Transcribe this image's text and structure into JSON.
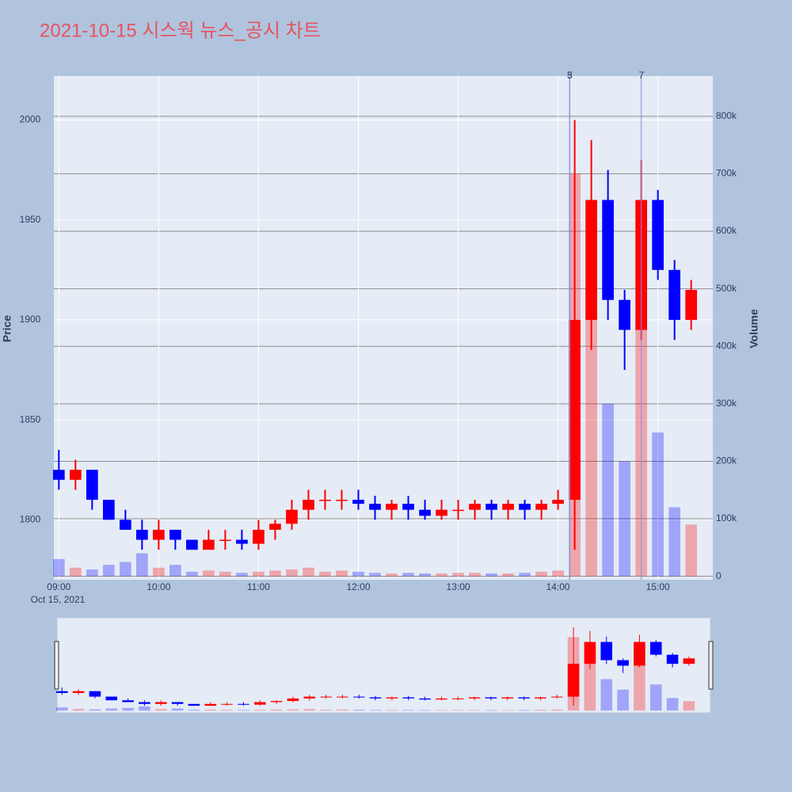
{
  "chart_data": {
    "type": "candlestick",
    "title": "2021-10-15 시스웍 뉴스_공시 차트",
    "ylabel": "Price",
    "y2label": "Volume",
    "x": [
      "09:00",
      "09:10",
      "09:20",
      "09:30",
      "09:40",
      "09:50",
      "10:00",
      "10:10",
      "10:20",
      "10:30",
      "10:40",
      "10:50",
      "11:00",
      "11:10",
      "11:20",
      "11:30",
      "11:40",
      "11:50",
      "12:00",
      "12:10",
      "12:20",
      "12:30",
      "12:40",
      "12:50",
      "13:00",
      "13:10",
      "13:20",
      "13:30",
      "13:40",
      "13:50",
      "14:00",
      "14:10",
      "14:20",
      "14:30",
      "14:40",
      "14:50",
      "15:00",
      "15:10",
      "15:20"
    ],
    "open": [
      1825,
      1820,
      1825,
      1810,
      1800,
      1795,
      1790,
      1795,
      1790,
      1785,
      1790,
      1790,
      1788,
      1795,
      1798,
      1805,
      1810,
      1810,
      1810,
      1808,
      1805,
      1808,
      1805,
      1802,
      1805,
      1805,
      1808,
      1805,
      1808,
      1805,
      1808,
      1810,
      1900,
      1960,
      1910,
      1895,
      1960,
      1925,
      1900
    ],
    "high": [
      1835,
      1830,
      1825,
      1810,
      1805,
      1800,
      1800,
      1795,
      1790,
      1795,
      1795,
      1795,
      1800,
      1800,
      1810,
      1815,
      1815,
      1815,
      1815,
      1812,
      1810,
      1812,
      1810,
      1810,
      1810,
      1810,
      1810,
      1810,
      1810,
      1810,
      1815,
      2000,
      1990,
      1975,
      1915,
      1980,
      1965,
      1930,
      1920
    ],
    "low": [
      1815,
      1815,
      1805,
      1800,
      1795,
      1785,
      1785,
      1785,
      1785,
      1785,
      1785,
      1785,
      1785,
      1790,
      1795,
      1800,
      1805,
      1805,
      1805,
      1800,
      1800,
      1800,
      1800,
      1800,
      1800,
      1800,
      1800,
      1800,
      1800,
      1800,
      1805,
      1785,
      1885,
      1900,
      1875,
      1890,
      1920,
      1890,
      1895
    ],
    "close": [
      1820,
      1825,
      1810,
      1800,
      1795,
      1790,
      1795,
      1790,
      1785,
      1790,
      1790,
      1788,
      1795,
      1798,
      1805,
      1810,
      1810,
      1810,
      1808,
      1805,
      1808,
      1805,
      1802,
      1805,
      1805,
      1808,
      1805,
      1808,
      1805,
      1808,
      1810,
      1900,
      1960,
      1910,
      1895,
      1960,
      1925,
      1900,
      1915
    ],
    "volume": [
      30000,
      15000,
      12000,
      20000,
      25000,
      40000,
      15000,
      20000,
      8000,
      10000,
      8000,
      6000,
      8000,
      10000,
      12000,
      15000,
      8000,
      10000,
      8000,
      6000,
      5000,
      6000,
      5000,
      5000,
      6000,
      6000,
      5000,
      5000,
      6000,
      8000,
      10000,
      700000,
      500000,
      300000,
      200000,
      450000,
      250000,
      120000,
      90000
    ],
    "increasing_color": "#ff0000",
    "decreasing_color": "#0000ff",
    "ylim": [
      1770,
      2022
    ],
    "yticks": [
      1800,
      1850,
      1900,
      1950,
      2000
    ],
    "y2lim": [
      -6000,
      870000
    ],
    "y2ticks": [
      0,
      {
        "value": 100000,
        "label": "100k"
      },
      {
        "value": 200000,
        "label": "200k"
      },
      {
        "value": 300000,
        "label": "300k"
      },
      {
        "value": 400000,
        "label": "400k"
      },
      {
        "value": 500000,
        "label": "500k"
      },
      {
        "value": 600000,
        "label": "600k"
      },
      {
        "value": 700000,
        "label": "700k"
      },
      {
        "value": 800000,
        "label": "800k"
      }
    ],
    "xlim": [
      "08:57",
      "15:33"
    ],
    "xticks": [
      "09:00",
      "10:00",
      "11:00",
      "12:00",
      "13:00",
      "14:00",
      "15:00"
    ],
    "x_date_label": "Oct 15, 2021",
    "events": [
      {
        "x": "14:07",
        "label": "3"
      },
      {
        "x": "14:07",
        "label": "5"
      },
      {
        "x": "14:50",
        "label": "7"
      }
    ],
    "grid": true,
    "rangeslider": true
  }
}
